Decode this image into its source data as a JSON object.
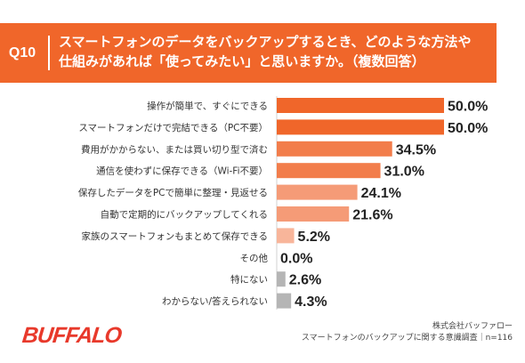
{
  "question": {
    "number": "Q10",
    "title_line1": "スマートフォンのデータをバックアップするとき、どのような方法や",
    "title_line2": "仕組みがあれば「使ってみたい」と思いますか。（複数回答）"
  },
  "colors": {
    "header": "#f0662a",
    "bar_levels": [
      "#f0662a",
      "#f27d4b",
      "#f59b77",
      "#f8b59a",
      "#b5b5b5"
    ]
  },
  "chart_data": {
    "type": "bar",
    "orientation": "horizontal",
    "categories": [
      "操作が簡単で、すぐにできる",
      "スマートフォンだけで完結できる（PC不要）",
      "費用がかからない、または買い切り型で済む",
      "通信を使わずに保存できる（Wi-Fi不要）",
      "保存したデータをPCで簡単に整理・見返せる",
      "自動で定期的にバックアップしてくれる",
      "家族のスマートフォンもまとめて保存できる",
      "その他",
      "特にない",
      "わからない/答えられない"
    ],
    "values": [
      50.0,
      50.0,
      34.5,
      31.0,
      24.1,
      21.6,
      5.2,
      0.0,
      2.6,
      4.3
    ],
    "value_labels": [
      "50.0%",
      "50.0%",
      "34.5%",
      "31.0%",
      "24.1%",
      "21.6%",
      "5.2%",
      "0.0%",
      "2.6%",
      "4.3%"
    ],
    "color_index": [
      0,
      0,
      1,
      1,
      2,
      2,
      3,
      3,
      4,
      4
    ],
    "xlim": [
      0,
      50
    ],
    "unit": "%"
  },
  "footer": {
    "company": "株式会社バッファロー",
    "survey": "スマートフォンのバックアップに関する意識調査｜n=116"
  },
  "logo": {
    "text": "BUFFALO"
  }
}
